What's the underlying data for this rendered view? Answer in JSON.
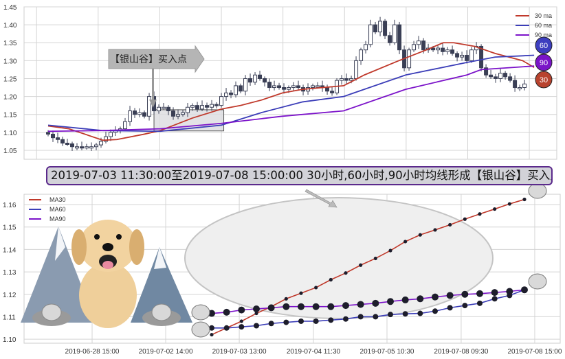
{
  "colors": {
    "ma30": "#c0392b",
    "ma60": "#3b3db8",
    "ma90": "#7b12c9",
    "candle": "#3a3f55",
    "badge30": "#b8432e",
    "badge60": "#3d3fbf",
    "badge90": "#7a14c8",
    "banner_border": "#5b2a8c"
  },
  "banner": {
    "text": "2019-07-03 11:30:00至2019-07-08 15:00:00 30小时,60小时,90小时均线形成【银山谷】买入点"
  },
  "top_annotation": {
    "label": "【银山谷】买入点"
  },
  "badges": [
    "60",
    "90",
    "30"
  ],
  "chart_data": [
    {
      "type": "candlestick",
      "title": "",
      "ylim": [
        1.025,
        1.45
      ],
      "yticks": [
        "1.05",
        "1.10",
        "1.15",
        "1.20",
        "1.25",
        "1.30",
        "1.35",
        "1.40",
        "1.45"
      ],
      "legend": {
        "placement": "top-right",
        "entries": [
          "30 ma",
          "60 ma",
          "90 ma"
        ]
      },
      "grid": true,
      "closes": [
        1.095,
        1.085,
        1.08,
        1.07,
        1.068,
        1.06,
        1.06,
        1.058,
        1.06,
        1.06,
        1.065,
        1.075,
        1.088,
        1.1,
        1.105,
        1.11,
        1.13,
        1.16,
        1.15,
        1.155,
        1.145,
        1.2,
        1.16,
        1.17,
        1.17,
        1.16,
        1.145,
        1.15,
        1.155,
        1.17,
        1.175,
        1.165,
        1.175,
        1.17,
        1.178,
        1.175,
        1.2,
        1.21,
        1.205,
        1.23,
        1.215,
        1.25,
        1.24,
        1.26,
        1.25,
        1.24,
        1.225,
        1.23,
        1.225,
        1.22,
        1.225,
        1.23,
        1.225,
        1.215,
        1.225,
        1.23,
        1.23,
        1.225,
        1.215,
        1.21,
        1.245,
        1.25,
        1.245,
        1.25,
        1.3,
        1.33,
        1.345,
        1.4,
        1.38,
        1.41,
        1.37,
        1.35,
        1.4,
        1.33,
        1.28,
        1.33,
        1.345,
        1.355,
        1.33,
        1.335,
        1.33,
        1.335,
        1.325,
        1.33,
        1.32,
        1.31,
        1.315,
        1.3,
        1.33,
        1.34,
        1.28,
        1.26,
        1.255,
        1.25,
        1.265,
        1.255,
        1.245,
        1.225,
        1.225,
        1.235
      ],
      "series": [
        {
          "name": "30 ma",
          "points": [
            [
              0,
              1.118
            ],
            [
              4.3,
              1.11
            ],
            [
              11.4,
              1.078
            ],
            [
              14.3,
              1.08
            ],
            [
              20,
              1.095
            ],
            [
              23.3,
              1.105
            ],
            [
              30,
              1.14
            ],
            [
              36,
              1.165
            ],
            [
              40,
              1.175
            ],
            [
              44.3,
              1.19
            ],
            [
              48.7,
              1.21
            ],
            [
              52.9,
              1.22
            ],
            [
              61.4,
              1.23
            ],
            [
              65.7,
              1.26
            ],
            [
              72.9,
              1.3
            ],
            [
              78.6,
              1.33
            ],
            [
              82.1,
              1.35
            ],
            [
              84.3,
              1.35
            ],
            [
              88.6,
              1.34
            ],
            [
              92.9,
              1.32
            ],
            [
              98.6,
              1.3
            ],
            [
              101,
              1.281
            ]
          ]
        },
        {
          "name": "60 ma",
          "points": [
            [
              0,
              1.12
            ],
            [
              11.4,
              1.105
            ],
            [
              23.3,
              1.103
            ],
            [
              36,
              1.12
            ],
            [
              44.3,
              1.155
            ],
            [
              52.9,
              1.185
            ],
            [
              61.4,
              1.2
            ],
            [
              74.3,
              1.26
            ],
            [
              87,
              1.295
            ],
            [
              92.9,
              1.31
            ],
            [
              101,
              1.315
            ]
          ]
        },
        {
          "name": "90 ma",
          "points": [
            [
              0,
              1.103
            ],
            [
              11.4,
              1.105
            ],
            [
              23.3,
              1.11
            ],
            [
              36,
              1.125
            ],
            [
              48.7,
              1.145
            ],
            [
              61.4,
              1.16
            ],
            [
              74.3,
              1.22
            ],
            [
              87,
              1.26
            ],
            [
              90,
              1.275
            ],
            [
              101,
              1.285
            ]
          ]
        }
      ],
      "highlight_range": {
        "from_index": 22,
        "to_index": 36.5,
        "low": 1.104,
        "high": 1.163
      }
    },
    {
      "type": "line",
      "title": "",
      "ylim": [
        1.0982,
        1.1646
      ],
      "yticks": [
        "1.10",
        "1.11",
        "1.12",
        "1.13",
        "1.14",
        "1.15",
        "1.16"
      ],
      "xticks": [
        {
          "label": "2019-06-28 15:00",
          "index": -8.03
        },
        {
          "label": "2019-07-02 14:00",
          "index": -3.09
        },
        {
          "label": "2019-07-03 13:00",
          "index": 1.85
        },
        {
          "label": "2019-07-04 11:30",
          "index": 6.83
        },
        {
          "label": "2019-07-05 10:30",
          "index": 11.77
        },
        {
          "label": "2019-07-08 09:30",
          "index": 16.75
        },
        {
          "label": "2019-07-08 15:00",
          "index": 21.69
        }
      ],
      "legend": {
        "placement": "top-left",
        "entries": [
          "MA30",
          "MA60",
          "MA90"
        ]
      },
      "grid": true,
      "series": [
        {
          "name": "MA30",
          "values": [
            1.102,
            1.105,
            1.108,
            1.1115,
            1.1145,
            1.118,
            1.1205,
            1.123,
            1.1265,
            1.1295,
            1.133,
            1.136,
            1.1395,
            1.1435,
            1.1465,
            1.1487,
            1.151,
            1.1535,
            1.1558,
            1.158,
            1.1603,
            1.1623
          ]
        },
        {
          "name": "MA60",
          "values": [
            1.105,
            1.105,
            1.1055,
            1.106,
            1.107,
            1.1075,
            1.108,
            1.108,
            1.1085,
            1.109,
            1.11,
            1.11,
            1.111,
            1.1113,
            1.1115,
            1.1125,
            1.114,
            1.115,
            1.116,
            1.118,
            1.1195,
            1.122
          ]
        },
        {
          "name": "MA90",
          "values": [
            1.1115,
            1.112,
            1.113,
            1.1135,
            1.114,
            1.1145,
            1.1145,
            1.1145,
            1.1145,
            1.115,
            1.1155,
            1.116,
            1.1168,
            1.1175,
            1.118,
            1.1188,
            1.1195,
            1.12,
            1.1203,
            1.1208,
            1.1213,
            1.122
          ]
        }
      ]
    }
  ]
}
